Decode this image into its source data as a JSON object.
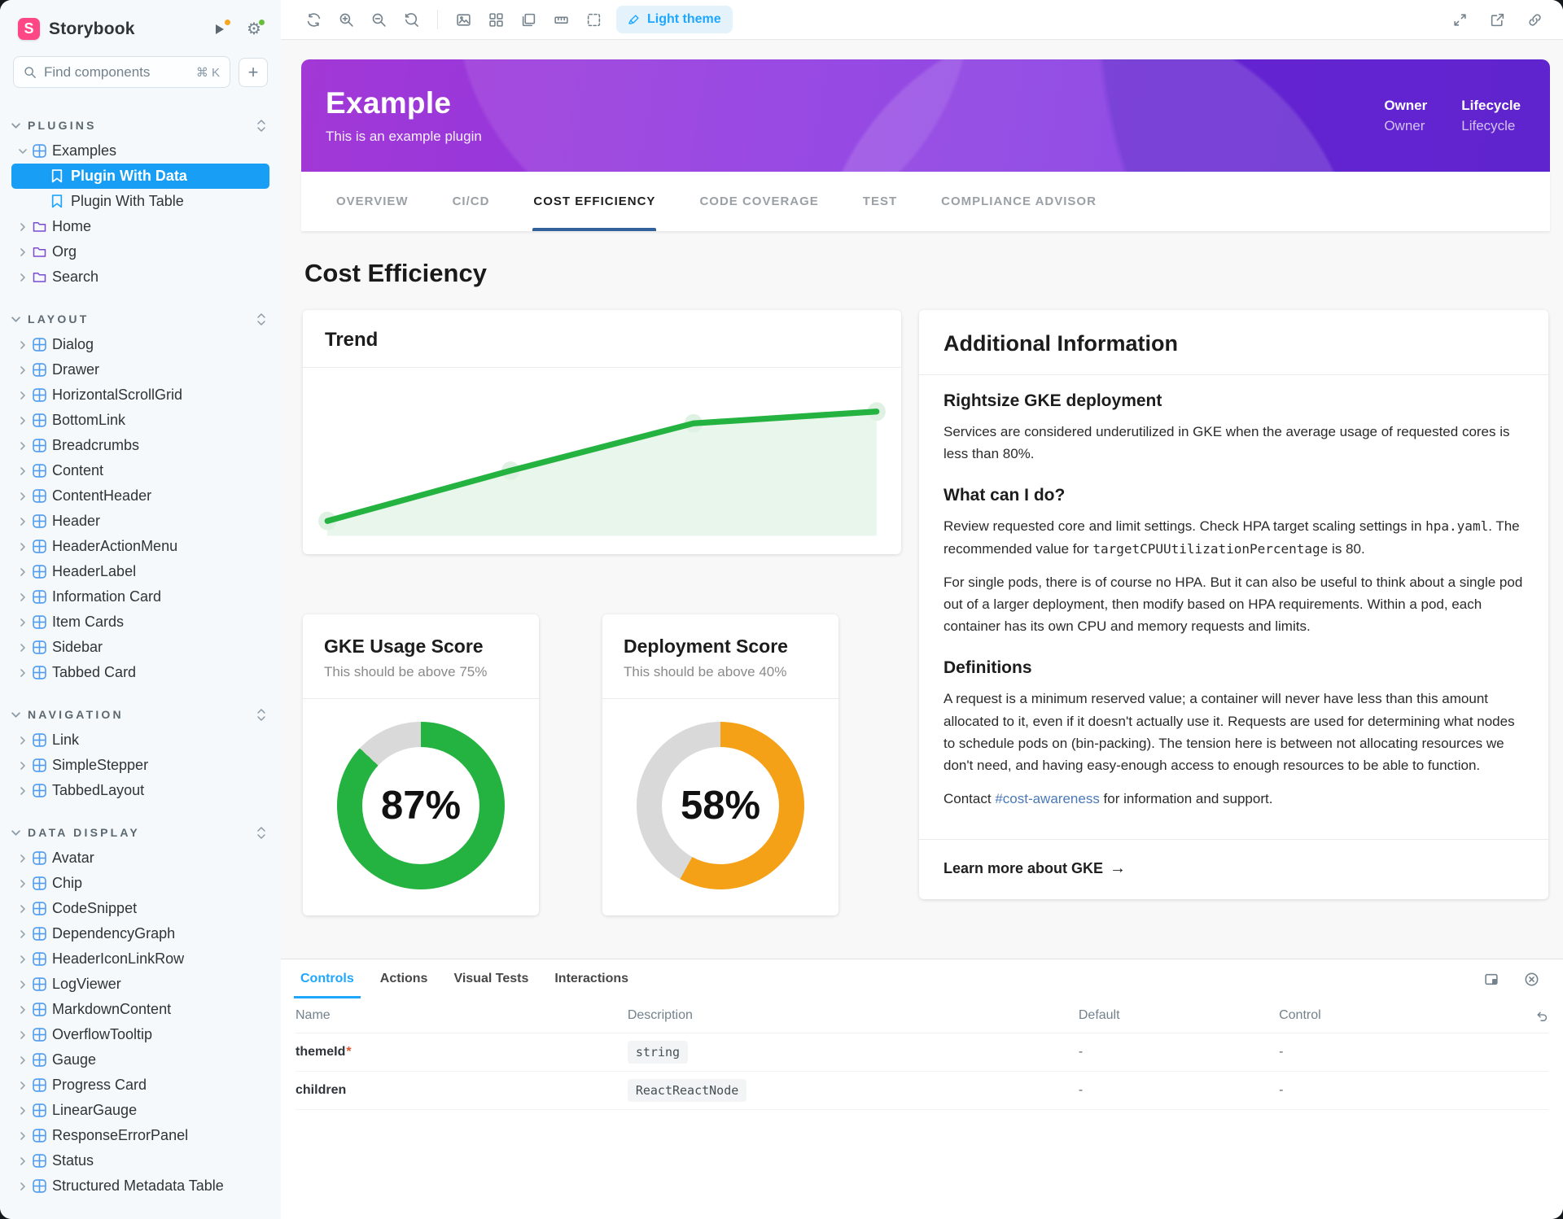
{
  "colors": {
    "sidebar_selected": "#189FF5",
    "storybook_pink": "#FF4785",
    "story_tab_underline": "#32609B",
    "controls_blue": "#1EA7FD",
    "green": "#24B340",
    "orange": "#F5A118",
    "donut_track": "#D9D9D9"
  },
  "sidebar": {
    "brand": "Storybook",
    "search": {
      "placeholder": "Find components",
      "shortcut": "⌘ K",
      "add_label": "+"
    },
    "sections": [
      {
        "label": "PLUGINS",
        "items": [
          {
            "type": "component",
            "label": "Examples",
            "expanded": true
          },
          {
            "type": "story",
            "label": "Plugin With Data",
            "active": true
          },
          {
            "type": "story",
            "label": "Plugin With Table"
          },
          {
            "type": "folder",
            "label": "Home"
          },
          {
            "type": "folder",
            "label": "Org"
          },
          {
            "type": "folder",
            "label": "Search"
          }
        ]
      },
      {
        "label": "LAYOUT",
        "items": [
          {
            "type": "component",
            "label": "Dialog"
          },
          {
            "type": "component",
            "label": "Drawer"
          },
          {
            "type": "component",
            "label": "HorizontalScrollGrid"
          },
          {
            "type": "component",
            "label": "BottomLink"
          },
          {
            "type": "component",
            "label": "Breadcrumbs"
          },
          {
            "type": "component",
            "label": "Content"
          },
          {
            "type": "component",
            "label": "ContentHeader"
          },
          {
            "type": "component",
            "label": "Header"
          },
          {
            "type": "component",
            "label": "HeaderActionMenu"
          },
          {
            "type": "component",
            "label": "HeaderLabel"
          },
          {
            "type": "component",
            "label": "Information Card"
          },
          {
            "type": "component",
            "label": "Item Cards"
          },
          {
            "type": "component",
            "label": "Sidebar"
          },
          {
            "type": "component",
            "label": "Tabbed Card"
          }
        ]
      },
      {
        "label": "NAVIGATION",
        "items": [
          {
            "type": "component",
            "label": "Link"
          },
          {
            "type": "component",
            "label": "SimpleStepper"
          },
          {
            "type": "component",
            "label": "TabbedLayout"
          }
        ]
      },
      {
        "label": "DATA DISPLAY",
        "items": [
          {
            "type": "component",
            "label": "Avatar"
          },
          {
            "type": "component",
            "label": "Chip"
          },
          {
            "type": "component",
            "label": "CodeSnippet"
          },
          {
            "type": "component",
            "label": "DependencyGraph"
          },
          {
            "type": "component",
            "label": "HeaderIconLinkRow"
          },
          {
            "type": "component",
            "label": "LogViewer"
          },
          {
            "type": "component",
            "label": "MarkdownContent"
          },
          {
            "type": "component",
            "label": "OverflowTooltip"
          },
          {
            "type": "component",
            "label": "Gauge"
          },
          {
            "type": "component",
            "label": "Progress Card"
          },
          {
            "type": "component",
            "label": "LinearGauge"
          },
          {
            "type": "component",
            "label": "ResponseErrorPanel"
          },
          {
            "type": "component",
            "label": "Status"
          },
          {
            "type": "component",
            "label": "Structured Metadata Table"
          }
        ]
      }
    ]
  },
  "toolbar": {
    "theme_button": "Light theme"
  },
  "banner": {
    "title": "Example",
    "subtitle": "This is an example plugin",
    "meta": [
      {
        "label": "Owner",
        "value": "Owner"
      },
      {
        "label": "Lifecycle",
        "value": "Lifecycle"
      }
    ]
  },
  "tabs": [
    {
      "label": "Overview"
    },
    {
      "label": "CI/CD"
    },
    {
      "label": "Cost Efficiency",
      "active": true
    },
    {
      "label": "Code Coverage"
    },
    {
      "label": "Test"
    },
    {
      "label": "Compliance Advisor"
    }
  ],
  "page": {
    "title": "Cost Efficiency"
  },
  "trend": {
    "title": "Trend"
  },
  "chart_data": {
    "type": "area",
    "title": "Trend",
    "x": [
      0,
      1,
      2,
      3
    ],
    "values": [
      10,
      44,
      76,
      84
    ],
    "ylim": [
      0,
      100
    ],
    "color": "#24B340",
    "fill": "#E9F6EC",
    "halo": "#DFF1E2",
    "grid": false,
    "axes_hidden": true
  },
  "gauges": {
    "gke": {
      "title": "GKE Usage Score",
      "subtitle": "This should be above 75%",
      "value": 87,
      "label": "87%",
      "color": "#24B340"
    },
    "deployment": {
      "title": "Deployment Score",
      "subtitle": "This should be above 40%",
      "value": 58,
      "label": "58%",
      "color": "#F5A118"
    }
  },
  "info": {
    "title": "Additional Information",
    "rightsize_heading": "Rightsize GKE deployment",
    "rightsize_body": "Services are considered underutilized in GKE when the average usage of requested cores is less than 80%.",
    "what_heading": "What can I do?",
    "what_body_1": "Review requested core and limit settings. Check HPA target scaling settings in ",
    "what_code_1": "hpa.yaml",
    "what_body_2": ". The recommended value for ",
    "what_code_2": "targetCPUUtilizationPercentage",
    "what_body_3": " is 80.",
    "what_body_4": "For single pods, there is of course no HPA. But it can also be useful to think about a single pod out of a larger deployment, then modify based on HPA requirements. Within a pod, each container has its own CPU and memory requests and limits.",
    "defs_heading": "Definitions",
    "defs_body": "A request is a minimum reserved value; a container will never have less than this amount allocated to it, even if it doesn't actually use it. Requests are used for determining what nodes to schedule pods on (bin-packing). The tension here is between not allocating resources we don't need, and having easy-enough access to enough resources to be able to function.",
    "contact_1": "Contact ",
    "contact_link": "#cost-awareness",
    "contact_2": " for information and support.",
    "footer_link": "Learn more about GKE",
    "footer_arrow": "→"
  },
  "panel": {
    "tabs": [
      {
        "label": "Controls",
        "active": true
      },
      {
        "label": "Actions"
      },
      {
        "label": "Visual Tests"
      },
      {
        "label": "Interactions"
      }
    ],
    "table": {
      "headers": [
        "Name",
        "Description",
        "Default",
        "Control"
      ],
      "rows": [
        {
          "name": "themeId",
          "required": true,
          "description": "string",
          "default": "-",
          "control": "-"
        },
        {
          "name": "children",
          "required": false,
          "description": "ReactReactNode",
          "default": "-",
          "control": "-"
        }
      ]
    }
  }
}
